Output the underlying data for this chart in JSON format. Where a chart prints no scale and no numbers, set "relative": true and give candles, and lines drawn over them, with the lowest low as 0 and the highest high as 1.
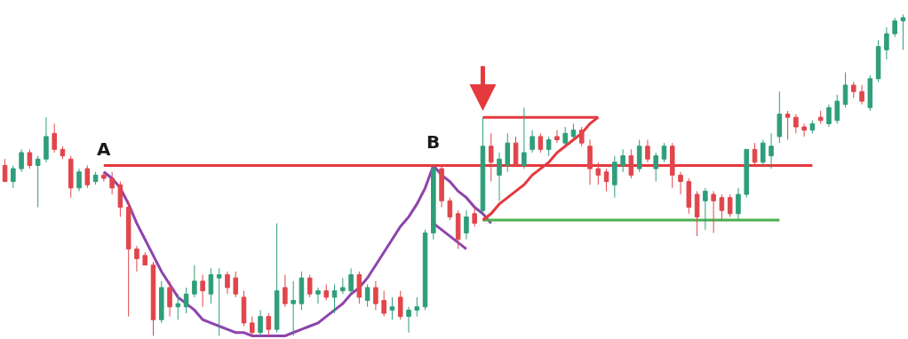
{
  "chart_data": {
    "type": "candlestick",
    "relative": true,
    "categories": [
      null,
      null,
      null,
      null,
      null,
      null,
      null,
      null,
      null,
      null,
      null,
      null,
      null,
      null,
      null,
      null,
      null,
      null,
      null,
      null,
      null,
      null,
      null,
      null,
      null,
      null,
      null,
      null,
      null,
      null,
      null,
      null,
      null,
      null,
      null,
      null,
      null,
      null,
      null,
      null,
      null,
      null,
      null,
      null,
      null,
      null,
      null,
      null,
      null,
      null,
      null,
      null,
      null,
      null,
      null,
      null,
      null,
      null,
      null,
      null,
      null,
      null,
      null,
      null,
      null,
      null,
      null,
      null,
      null,
      null,
      null,
      null,
      null,
      null,
      null,
      null,
      null,
      null,
      null,
      null,
      null,
      null,
      null,
      null,
      null,
      null,
      null,
      null,
      null,
      null,
      null,
      null,
      null,
      null,
      null,
      null,
      null,
      null,
      null,
      null,
      null,
      null,
      null,
      null,
      null,
      null,
      null,
      null,
      null,
      null
    ],
    "ohlc": [
      [
        0.53,
        0.55,
        0.48,
        0.48
      ],
      [
        0.48,
        0.53,
        0.46,
        0.52
      ],
      [
        0.52,
        0.58,
        0.51,
        0.57
      ],
      [
        0.57,
        0.58,
        0.52,
        0.53
      ],
      [
        0.53,
        0.56,
        0.4,
        0.55
      ],
      [
        0.55,
        0.68,
        0.54,
        0.62
      ],
      [
        0.63,
        0.66,
        0.57,
        0.58
      ],
      [
        0.58,
        0.59,
        0.55,
        0.56
      ],
      [
        0.55,
        0.56,
        0.43,
        0.46
      ],
      [
        0.46,
        0.52,
        0.45,
        0.51
      ],
      [
        0.52,
        0.53,
        0.46,
        0.47
      ],
      [
        0.48,
        0.51,
        0.47,
        0.5
      ],
      [
        0.5,
        0.51,
        0.48,
        0.49
      ],
      [
        0.49,
        0.51,
        0.44,
        0.46
      ],
      [
        0.47,
        0.48,
        0.37,
        0.4
      ],
      [
        0.4,
        0.42,
        0.06,
        0.27
      ],
      [
        0.27,
        0.28,
        0.2,
        0.24
      ],
      [
        0.25,
        0.26,
        0.22,
        0.22
      ],
      [
        0.22,
        0.23,
        0.0,
        0.05
      ],
      [
        0.05,
        0.17,
        0.04,
        0.15
      ],
      [
        0.15,
        0.17,
        0.06,
        0.09
      ],
      [
        0.09,
        0.13,
        0.05,
        0.1
      ],
      [
        0.09,
        0.15,
        0.07,
        0.13
      ],
      [
        0.13,
        0.22,
        0.12,
        0.17
      ],
      [
        0.17,
        0.19,
        0.09,
        0.14
      ],
      [
        0.13,
        0.21,
        0.1,
        0.19
      ],
      [
        0.18,
        0.21,
        0.0,
        0.19
      ],
      [
        0.19,
        0.2,
        0.13,
        0.15
      ],
      [
        0.18,
        0.2,
        0.12,
        0.13
      ],
      [
        0.12,
        0.14,
        0.03,
        0.04
      ],
      [
        0.04,
        0.06,
        0.0,
        0.01
      ],
      [
        0.01,
        0.08,
        0.0,
        0.06
      ],
      [
        0.06,
        0.07,
        0.0,
        0.02
      ],
      [
        0.02,
        0.35,
        0.01,
        0.14
      ],
      [
        0.15,
        0.19,
        0.09,
        0.1
      ],
      [
        0.1,
        0.17,
        0.0,
        0.11
      ],
      [
        0.1,
        0.2,
        0.08,
        0.18
      ],
      [
        0.18,
        0.19,
        0.12,
        0.13
      ],
      [
        0.13,
        0.15,
        0.1,
        0.14
      ],
      [
        0.14,
        0.16,
        0.11,
        0.12
      ],
      [
        0.12,
        0.16,
        0.07,
        0.14
      ],
      [
        0.14,
        0.18,
        0.13,
        0.15
      ],
      [
        0.14,
        0.21,
        0.13,
        0.19
      ],
      [
        0.19,
        0.2,
        0.1,
        0.12
      ],
      [
        0.11,
        0.16,
        0.09,
        0.15
      ],
      [
        0.15,
        0.17,
        0.08,
        0.1
      ],
      [
        0.11,
        0.14,
        0.06,
        0.07
      ],
      [
        0.08,
        0.12,
        0.05,
        0.09
      ],
      [
        0.12,
        0.14,
        0.05,
        0.06
      ],
      [
        0.06,
        0.09,
        0.01,
        0.08
      ],
      [
        0.08,
        0.12,
        0.06,
        0.09
      ],
      [
        0.09,
        0.33,
        0.08,
        0.32
      ],
      [
        0.32,
        0.53,
        0.3,
        0.52
      ],
      [
        0.52,
        0.53,
        0.4,
        0.42
      ],
      [
        0.42,
        0.43,
        0.36,
        0.37
      ],
      [
        0.38,
        0.39,
        0.27,
        0.3
      ],
      [
        0.32,
        0.39,
        0.3,
        0.37
      ],
      [
        0.38,
        0.4,
        0.34,
        0.35
      ],
      [
        0.39,
        0.68,
        0.38,
        0.59
      ],
      [
        0.59,
        0.63,
        0.48,
        0.54
      ],
      [
        0.5,
        0.57,
        0.42,
        0.55
      ],
      [
        0.53,
        0.63,
        0.51,
        0.6
      ],
      [
        0.6,
        0.62,
        0.53,
        0.53
      ],
      [
        0.53,
        0.71,
        0.52,
        0.57
      ],
      [
        0.58,
        0.64,
        0.57,
        0.62
      ],
      [
        0.62,
        0.63,
        0.57,
        0.58
      ],
      [
        0.58,
        0.62,
        0.56,
        0.61
      ],
      [
        0.62,
        0.64,
        0.6,
        0.61
      ],
      [
        0.6,
        0.65,
        0.59,
        0.63
      ],
      [
        0.62,
        0.66,
        0.61,
        0.64
      ],
      [
        0.64,
        0.65,
        0.59,
        0.6
      ],
      [
        0.59,
        0.61,
        0.47,
        0.52
      ],
      [
        0.52,
        0.54,
        0.47,
        0.5
      ],
      [
        0.51,
        0.52,
        0.45,
        0.48
      ],
      [
        0.47,
        0.56,
        0.43,
        0.54
      ],
      [
        0.53,
        0.58,
        0.51,
        0.56
      ],
      [
        0.56,
        0.58,
        0.49,
        0.5
      ],
      [
        0.52,
        0.61,
        0.51,
        0.59
      ],
      [
        0.59,
        0.61,
        0.54,
        0.55
      ],
      [
        0.52,
        0.57,
        0.48,
        0.56
      ],
      [
        0.55,
        0.6,
        0.54,
        0.59
      ],
      [
        0.59,
        0.6,
        0.46,
        0.5
      ],
      [
        0.5,
        0.51,
        0.44,
        0.48
      ],
      [
        0.48,
        0.49,
        0.38,
        0.4
      ],
      [
        0.44,
        0.45,
        0.31,
        0.37
      ],
      [
        0.42,
        0.46,
        0.33,
        0.45
      ],
      [
        0.44,
        0.45,
        0.32,
        0.42
      ],
      [
        0.43,
        0.44,
        0.36,
        0.39
      ],
      [
        0.43,
        0.44,
        0.37,
        0.38
      ],
      [
        0.38,
        0.46,
        0.36,
        0.44
      ],
      [
        0.44,
        0.58,
        0.43,
        0.58
      ],
      [
        0.58,
        0.6,
        0.53,
        0.54
      ],
      [
        0.54,
        0.61,
        0.53,
        0.6
      ],
      [
        0.56,
        0.63,
        0.52,
        0.59
      ],
      [
        0.62,
        0.76,
        0.6,
        0.69
      ],
      [
        0.69,
        0.7,
        0.61,
        0.68
      ],
      [
        0.68,
        0.69,
        0.63,
        0.65
      ],
      [
        0.65,
        0.66,
        0.62,
        0.64
      ],
      [
        0.64,
        0.67,
        0.63,
        0.66
      ],
      [
        0.68,
        0.7,
        0.66,
        0.67
      ],
      [
        0.66,
        0.72,
        0.65,
        0.71
      ],
      [
        0.67,
        0.75,
        0.66,
        0.73
      ],
      [
        0.72,
        0.82,
        0.71,
        0.78
      ],
      [
        0.78,
        0.79,
        0.74,
        0.76
      ],
      [
        0.76,
        0.78,
        0.72,
        0.73
      ],
      [
        0.71,
        0.81,
        0.7,
        0.8
      ],
      [
        0.8,
        0.92,
        0.79,
        0.9
      ],
      [
        0.89,
        0.96,
        0.86,
        0.94
      ],
      [
        0.94,
        0.99,
        0.93,
        0.98
      ],
      [
        0.98,
        1.0,
        0.89,
        0.99
      ]
    ],
    "colors": [
      "#e0464b",
      "#2f9e7a",
      "#2f9e7a",
      "#e0464b",
      "#2f9e7a",
      "#2f9e7a",
      "#e0464b",
      "#e0464b",
      "#e0464b",
      "#2f9e7a",
      "#e0464b",
      "#2f9e7a",
      "#e0464b",
      "#e0464b",
      "#e0464b",
      "#e0464b",
      "#e0464b",
      "#e0464b",
      "#e0464b",
      "#2f9e7a",
      "#e0464b",
      "#2f9e7a",
      "#2f9e7a",
      "#2f9e7a",
      "#e0464b",
      "#2f9e7a",
      "#2f9e7a",
      "#e0464b",
      "#e0464b",
      "#e0464b",
      "#e0464b",
      "#2f9e7a",
      "#e0464b",
      "#2f9e7a",
      "#e0464b",
      "#2f9e7a",
      "#2f9e7a",
      "#e0464b",
      "#2f9e7a",
      "#e0464b",
      "#2f9e7a",
      "#2f9e7a",
      "#2f9e7a",
      "#e0464b",
      "#2f9e7a",
      "#e0464b",
      "#e0464b",
      "#2f9e7a",
      "#e0464b",
      "#2f9e7a",
      "#2f9e7a",
      "#2f9e7a",
      "#2f9e7a",
      "#e0464b",
      "#e0464b",
      "#e0464b",
      "#2f9e7a",
      "#e0464b",
      "#2f9e7a",
      "#e0464b",
      "#2f9e7a",
      "#2f9e7a",
      "#e0464b",
      "#2f9e7a",
      "#2f9e7a",
      "#e0464b",
      "#2f9e7a",
      "#e0464b",
      "#2f9e7a",
      "#2f9e7a",
      "#e0464b",
      "#e0464b",
      "#e0464b",
      "#e0464b",
      "#2f9e7a",
      "#2f9e7a",
      "#e0464b",
      "#2f9e7a",
      "#e0464b",
      "#2f9e7a",
      "#2f9e7a",
      "#e0464b",
      "#e0464b",
      "#e0464b",
      "#e0464b",
      "#2f9e7a",
      "#e0464b",
      "#e0464b",
      "#e0464b",
      "#2f9e7a",
      "#2f9e7a",
      "#e0464b",
      "#2f9e7a",
      "#2f9e7a",
      "#2f9e7a",
      "#e0464b",
      "#e0464b",
      "#e0464b",
      "#2f9e7a",
      "#e0464b",
      "#2f9e7a",
      "#2f9e7a",
      "#2f9e7a",
      "#e0464b",
      "#e0464b",
      "#2f9e7a",
      "#2f9e7a",
      "#2f9e7a",
      "#2f9e7a",
      "#2f9e7a"
    ],
    "series": [
      {
        "type": "line",
        "color": "#8e44ad",
        "values": [
          null,
          null,
          null,
          null,
          null,
          null,
          null,
          null,
          null,
          null,
          null,
          null,
          0.51,
          0.49,
          0.46,
          0.41,
          0.35,
          0.3,
          0.25,
          0.2,
          0.16,
          0.12,
          0.1,
          0.08,
          0.05,
          0.04,
          0.03,
          0.02,
          0.01,
          0.01,
          0.0,
          0.0,
          0.0,
          0.0,
          0.0,
          0.01,
          0.02,
          0.03,
          0.04,
          0.06,
          0.08,
          0.1,
          0.13,
          0.15,
          0.18,
          0.22,
          0.26,
          0.3,
          0.34,
          0.37,
          0.41,
          0.46,
          0.53,
          null,
          null,
          null,
          null,
          null,
          null,
          null,
          null,
          null,
          null,
          null,
          null,
          null,
          null,
          null,
          null,
          null,
          null,
          null,
          null,
          null,
          null,
          null,
          null,
          null,
          null,
          null,
          null,
          null,
          null,
          null,
          null,
          null,
          null,
          null,
          null,
          null,
          null,
          null,
          null,
          null,
          null,
          null,
          null,
          null,
          null,
          null,
          null,
          null,
          null,
          null,
          null,
          null,
          null,
          null,
          null,
          null
        ]
      },
      {
        "type": "line",
        "color": "#8e44ad",
        "values": [
          null,
          null,
          null,
          null,
          null,
          null,
          null,
          null,
          null,
          null,
          null,
          null,
          null,
          null,
          null,
          null,
          null,
          null,
          null,
          null,
          null,
          null,
          null,
          null,
          null,
          null,
          null,
          null,
          null,
          null,
          null,
          null,
          null,
          null,
          null,
          null,
          null,
          null,
          null,
          null,
          null,
          null,
          null,
          null,
          null,
          null,
          null,
          null,
          null,
          null,
          null,
          null,
          0.53,
          0.5,
          0.48,
          0.45,
          0.43,
          0.4,
          0.38,
          0.35,
          null,
          null,
          null,
          null,
          null,
          null,
          null,
          null,
          null,
          null,
          null,
          null,
          null,
          null,
          null,
          null,
          null,
          null,
          null,
          null,
          null,
          null,
          null,
          null,
          null,
          null,
          null,
          null,
          null,
          null,
          null,
          null,
          null,
          null,
          null,
          null,
          null,
          null,
          null,
          null,
          null,
          null,
          null,
          null,
          null,
          null,
          null,
          null,
          null,
          null
        ]
      },
      {
        "type": "line",
        "color": "#8e44ad",
        "values": [
          null,
          null,
          null,
          null,
          null,
          null,
          null,
          null,
          null,
          null,
          null,
          null,
          null,
          null,
          null,
          null,
          null,
          null,
          null,
          null,
          null,
          null,
          null,
          null,
          null,
          null,
          null,
          null,
          null,
          null,
          null,
          null,
          null,
          null,
          null,
          null,
          null,
          null,
          null,
          null,
          null,
          null,
          null,
          null,
          null,
          null,
          null,
          null,
          null,
          null,
          null,
          null,
          0.35,
          0.33,
          0.31,
          0.29,
          0.27,
          null,
          null,
          null,
          null,
          null,
          null,
          null,
          null,
          null,
          null,
          null,
          null,
          null,
          null,
          null,
          null,
          null,
          null,
          null,
          null,
          null,
          null,
          null,
          null,
          null,
          null,
          null,
          null,
          null,
          null,
          null,
          null,
          null,
          null,
          null,
          null,
          null,
          null,
          null,
          null,
          null,
          null,
          null,
          null,
          null,
          null,
          null,
          null,
          null,
          null,
          null,
          null,
          null
        ]
      },
      {
        "type": "line",
        "color": "#e5393e",
        "values": [
          null,
          null,
          null,
          null,
          null,
          null,
          null,
          null,
          null,
          null,
          null,
          null,
          0.53,
          0.53,
          0.53,
          0.53,
          0.53,
          0.53,
          0.53,
          0.53,
          0.53,
          0.53,
          0.53,
          0.53,
          0.53,
          0.53,
          0.53,
          0.53,
          0.53,
          0.53,
          0.53,
          0.53,
          0.53,
          0.53,
          0.53,
          0.53,
          0.53,
          0.53,
          0.53,
          0.53,
          0.53,
          0.53,
          0.53,
          0.53,
          0.53,
          0.53,
          0.53,
          0.53,
          0.53,
          0.53,
          0.53,
          0.53,
          0.53,
          0.53,
          0.53,
          0.53,
          0.53,
          0.53,
          0.53,
          0.53,
          0.53,
          0.53,
          0.53,
          0.53,
          0.53,
          0.53,
          0.53,
          0.53,
          0.53,
          0.53,
          0.53,
          0.53,
          0.53,
          0.53,
          0.53,
          0.53,
          0.53,
          0.53,
          0.53,
          0.53,
          0.53,
          0.53,
          0.53,
          0.53,
          0.53,
          0.53,
          0.53,
          0.53,
          0.53,
          0.53,
          0.53,
          0.53,
          0.53,
          0.53,
          0.53,
          0.53,
          0.53,
          0.53,
          0.53,
          null,
          null,
          null,
          null,
          null,
          null,
          null,
          null,
          null,
          null,
          null
        ]
      },
      {
        "type": "line",
        "color": "#4caf50",
        "values": [
          null,
          null,
          null,
          null,
          null,
          null,
          null,
          null,
          null,
          null,
          null,
          null,
          null,
          null,
          null,
          null,
          null,
          null,
          null,
          null,
          null,
          null,
          null,
          null,
          null,
          null,
          null,
          null,
          null,
          null,
          null,
          null,
          null,
          null,
          null,
          null,
          null,
          null,
          null,
          null,
          null,
          null,
          null,
          null,
          null,
          null,
          null,
          null,
          null,
          null,
          null,
          null,
          null,
          null,
          null,
          null,
          null,
          null,
          0.36,
          0.36,
          0.36,
          0.36,
          0.36,
          0.36,
          0.36,
          0.36,
          0.36,
          0.36,
          0.36,
          0.36,
          0.36,
          0.36,
          0.36,
          0.36,
          0.36,
          0.36,
          0.36,
          0.36,
          0.36,
          0.36,
          0.36,
          0.36,
          0.36,
          0.36,
          0.36,
          0.36,
          0.36,
          0.36,
          0.36,
          0.36,
          0.36,
          0.36,
          0.36,
          0.36,
          0.36,
          null,
          null,
          null,
          null,
          null,
          null,
          null,
          null,
          null,
          null,
          null,
          null,
          null,
          null,
          null
        ]
      },
      {
        "type": "line",
        "color": "#e5393e",
        "values": [
          null,
          null,
          null,
          null,
          null,
          null,
          null,
          null,
          null,
          null,
          null,
          null,
          null,
          null,
          null,
          null,
          null,
          null,
          null,
          null,
          null,
          null,
          null,
          null,
          null,
          null,
          null,
          null,
          null,
          null,
          null,
          null,
          null,
          null,
          null,
          null,
          null,
          null,
          null,
          null,
          null,
          null,
          null,
          null,
          null,
          null,
          null,
          null,
          null,
          null,
          null,
          null,
          null,
          null,
          null,
          null,
          null,
          null,
          0.68,
          0.68,
          0.68,
          0.68,
          0.68,
          0.68,
          0.68,
          0.68,
          0.68,
          0.68,
          0.68,
          0.68,
          0.68,
          0.68,
          0.68,
          null,
          null,
          null,
          null,
          null,
          null,
          null,
          null,
          null,
          null,
          null,
          null,
          null,
          null,
          null,
          null,
          null,
          null,
          null,
          null,
          null,
          null,
          null,
          null,
          null,
          null,
          null,
          null,
          null,
          null,
          null,
          null,
          null,
          null,
          null,
          null,
          null
        ]
      },
      {
        "type": "line",
        "color": "#e5393e",
        "values": [
          null,
          null,
          null,
          null,
          null,
          null,
          null,
          null,
          null,
          null,
          null,
          null,
          null,
          null,
          null,
          null,
          null,
          null,
          null,
          null,
          null,
          null,
          null,
          null,
          null,
          null,
          null,
          null,
          null,
          null,
          null,
          null,
          null,
          null,
          null,
          null,
          null,
          null,
          null,
          null,
          null,
          null,
          null,
          null,
          null,
          null,
          null,
          null,
          null,
          null,
          null,
          null,
          null,
          null,
          null,
          null,
          null,
          null,
          0.36,
          0.38,
          0.41,
          0.43,
          0.45,
          0.47,
          0.5,
          0.52,
          0.54,
          0.57,
          0.59,
          0.61,
          0.63,
          0.66,
          0.68,
          null,
          null,
          null,
          null,
          null,
          null,
          null,
          null,
          null,
          null,
          null,
          null,
          null,
          null,
          null,
          null,
          null,
          null,
          null,
          null,
          null,
          null,
          null,
          null,
          null,
          null,
          null,
          null,
          null,
          null,
          null,
          null,
          null,
          null,
          null,
          null,
          null
        ]
      }
    ],
    "annotations": [
      "A",
      "B"
    ]
  }
}
